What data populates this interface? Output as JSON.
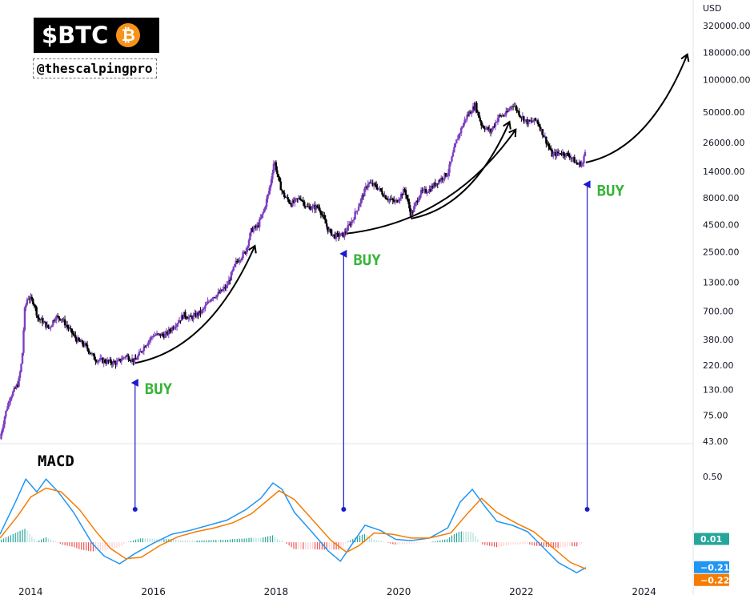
{
  "brand": {
    "ticker": "$BTC",
    "coin_symbol": "₿",
    "handle": "@thescalpingpro",
    "coin_color": "#f7931a"
  },
  "chart_data": [
    {
      "type": "candlestick",
      "title": "",
      "currency_label": "USD",
      "y_scale": "log",
      "ylim": [
        43,
        320000
      ],
      "y_tick_labels": [
        "320000.00",
        "180000.00",
        "100000.00",
        "50000.00",
        "26000.00",
        "14000.00",
        "8000.00",
        "4500.00",
        "2500.00",
        "1300.00",
        "700.00",
        "380.00",
        "220.00",
        "130.00",
        "75.00",
        "43.00"
      ],
      "y_tick_values": [
        320000,
        180000,
        100000,
        50000,
        26000,
        14000,
        8000,
        4500,
        2500,
        1300,
        700,
        380,
        220,
        130,
        75,
        43
      ],
      "x_tick_labels": [
        "2014",
        "2016",
        "2018",
        "2020",
        "2022",
        "2024"
      ],
      "x_tick_values": [
        2014,
        2016,
        2018,
        2020,
        2022,
        2024
      ],
      "xlim": [
        2013.5,
        2024.8
      ],
      "up_color": "#7e3fc0",
      "down_color": "#000000",
      "price_path": [
        {
          "t": 2013.5,
          "p": 45
        },
        {
          "t": 2013.58,
          "p": 75
        },
        {
          "t": 2013.66,
          "p": 110
        },
        {
          "t": 2013.74,
          "p": 130
        },
        {
          "t": 2013.8,
          "p": 150
        },
        {
          "t": 2013.86,
          "p": 250
        },
        {
          "t": 2013.9,
          "p": 700
        },
        {
          "t": 2013.95,
          "p": 950
        },
        {
          "t": 2014.05,
          "p": 850
        },
        {
          "t": 2014.12,
          "p": 600
        },
        {
          "t": 2014.2,
          "p": 560
        },
        {
          "t": 2014.3,
          "p": 480
        },
        {
          "t": 2014.4,
          "p": 620
        },
        {
          "t": 2014.5,
          "p": 600
        },
        {
          "t": 2014.6,
          "p": 500
        },
        {
          "t": 2014.75,
          "p": 380
        },
        {
          "t": 2014.9,
          "p": 330
        },
        {
          "t": 2015.05,
          "p": 250
        },
        {
          "t": 2015.2,
          "p": 240
        },
        {
          "t": 2015.4,
          "p": 230
        },
        {
          "t": 2015.55,
          "p": 270
        },
        {
          "t": 2015.7,
          "p": 240
        },
        {
          "t": 2015.85,
          "p": 330
        },
        {
          "t": 2016.0,
          "p": 420
        },
        {
          "t": 2016.2,
          "p": 420
        },
        {
          "t": 2016.4,
          "p": 560
        },
        {
          "t": 2016.5,
          "p": 650
        },
        {
          "t": 2016.6,
          "p": 600
        },
        {
          "t": 2016.8,
          "p": 700
        },
        {
          "t": 2016.95,
          "p": 950
        },
        {
          "t": 2017.05,
          "p": 1000
        },
        {
          "t": 2017.2,
          "p": 1200
        },
        {
          "t": 2017.35,
          "p": 2000
        },
        {
          "t": 2017.5,
          "p": 2500
        },
        {
          "t": 2017.6,
          "p": 4000
        },
        {
          "t": 2017.7,
          "p": 4300
        },
        {
          "t": 2017.8,
          "p": 6000
        },
        {
          "t": 2017.9,
          "p": 10000
        },
        {
          "t": 2017.97,
          "p": 18000
        },
        {
          "t": 2018.05,
          "p": 11000
        },
        {
          "t": 2018.12,
          "p": 8500
        },
        {
          "t": 2018.25,
          "p": 7000
        },
        {
          "t": 2018.4,
          "p": 8000
        },
        {
          "t": 2018.5,
          "p": 6500
        },
        {
          "t": 2018.7,
          "p": 6500
        },
        {
          "t": 2018.85,
          "p": 4000
        },
        {
          "t": 2018.95,
          "p": 3500
        },
        {
          "t": 2019.1,
          "p": 3600
        },
        {
          "t": 2019.25,
          "p": 5000
        },
        {
          "t": 2019.4,
          "p": 8000
        },
        {
          "t": 2019.5,
          "p": 11000
        },
        {
          "t": 2019.65,
          "p": 10000
        },
        {
          "t": 2019.8,
          "p": 8000
        },
        {
          "t": 2019.95,
          "p": 7200
        },
        {
          "t": 2020.1,
          "p": 9500
        },
        {
          "t": 2020.2,
          "p": 5500
        },
        {
          "t": 2020.35,
          "p": 8800
        },
        {
          "t": 2020.5,
          "p": 9500
        },
        {
          "t": 2020.65,
          "p": 11500
        },
        {
          "t": 2020.8,
          "p": 13500
        },
        {
          "t": 2020.95,
          "p": 28000
        },
        {
          "t": 2021.1,
          "p": 45000
        },
        {
          "t": 2021.25,
          "p": 58000
        },
        {
          "t": 2021.35,
          "p": 38000
        },
        {
          "t": 2021.5,
          "p": 33000
        },
        {
          "t": 2021.62,
          "p": 45000
        },
        {
          "t": 2021.75,
          "p": 48000
        },
        {
          "t": 2021.86,
          "p": 60000
        },
        {
          "t": 2021.98,
          "p": 47000
        },
        {
          "t": 2022.1,
          "p": 40000
        },
        {
          "t": 2022.25,
          "p": 42000
        },
        {
          "t": 2022.38,
          "p": 29000
        },
        {
          "t": 2022.5,
          "p": 20000
        },
        {
          "t": 2022.65,
          "p": 21000
        },
        {
          "t": 2022.8,
          "p": 19500
        },
        {
          "t": 2022.9,
          "p": 16500
        },
        {
          "t": 2023.0,
          "p": 16600
        },
        {
          "t": 2023.05,
          "p": 23000
        }
      ],
      "annotations": [
        {
          "label": "BUY",
          "t": 2015.65,
          "price": 220,
          "color": "#37b43a"
        },
        {
          "label": "BUY",
          "t": 2019.05,
          "price": 3500,
          "color": "#37b43a"
        },
        {
          "label": "BUY",
          "t": 2023.02,
          "price": 15500,
          "color": "#37b43a"
        }
      ],
      "projection_arrows": [
        {
          "from_t": 2015.7,
          "from_p": 230,
          "to_t": 2017.65,
          "to_p": 2800
        },
        {
          "from_t": 2019.15,
          "from_p": 3700,
          "to_t": 2021.9,
          "to_p": 34000
        },
        {
          "from_t": 2020.2,
          "from_p": 5100,
          "to_t": 2021.8,
          "to_p": 40000
        },
        {
          "from_t": 2023.05,
          "from_p": 17000,
          "to_t": 2024.7,
          "to_p": 170000
        }
      ]
    },
    {
      "type": "line",
      "title": "MACD",
      "title_color": "#e00000",
      "y_tick_labels": [
        "0.50"
      ],
      "y_tick_values": [
        0.5
      ],
      "ylim": [
        -0.33,
        0.75
      ],
      "series": [
        {
          "color": "#2196f3",
          "points": [
            {
              "t": 2013.5,
              "v": 0.05
            },
            {
              "t": 2013.75,
              "v": 0.3
            },
            {
              "t": 2013.92,
              "v": 0.48
            },
            {
              "t": 2014.1,
              "v": 0.38
            },
            {
              "t": 2014.25,
              "v": 0.48
            },
            {
              "t": 2014.45,
              "v": 0.38
            },
            {
              "t": 2014.7,
              "v": 0.22
            },
            {
              "t": 2015.0,
              "v": -0.02
            },
            {
              "t": 2015.2,
              "v": -0.12
            },
            {
              "t": 2015.45,
              "v": -0.18
            },
            {
              "t": 2015.7,
              "v": -0.1
            },
            {
              "t": 2016.0,
              "v": -0.02
            },
            {
              "t": 2016.3,
              "v": 0.05
            },
            {
              "t": 2016.6,
              "v": 0.08
            },
            {
              "t": 2016.9,
              "v": 0.12
            },
            {
              "t": 2017.2,
              "v": 0.16
            },
            {
              "t": 2017.5,
              "v": 0.24
            },
            {
              "t": 2017.75,
              "v": 0.33
            },
            {
              "t": 2017.95,
              "v": 0.45
            },
            {
              "t": 2018.1,
              "v": 0.4
            },
            {
              "t": 2018.3,
              "v": 0.22
            },
            {
              "t": 2018.6,
              "v": 0.06
            },
            {
              "t": 2018.85,
              "v": -0.08
            },
            {
              "t": 2019.05,
              "v": -0.16
            },
            {
              "t": 2019.25,
              "v": -0.02
            },
            {
              "t": 2019.45,
              "v": 0.12
            },
            {
              "t": 2019.7,
              "v": 0.08
            },
            {
              "t": 2019.95,
              "v": 0.01
            },
            {
              "t": 2020.2,
              "v": 0.0
            },
            {
              "t": 2020.5,
              "v": 0.02
            },
            {
              "t": 2020.8,
              "v": 0.1
            },
            {
              "t": 2021.0,
              "v": 0.3
            },
            {
              "t": 2021.2,
              "v": 0.4
            },
            {
              "t": 2021.4,
              "v": 0.27
            },
            {
              "t": 2021.6,
              "v": 0.15
            },
            {
              "t": 2021.85,
              "v": 0.12
            },
            {
              "t": 2022.1,
              "v": 0.07
            },
            {
              "t": 2022.35,
              "v": -0.05
            },
            {
              "t": 2022.6,
              "v": -0.17
            },
            {
              "t": 2022.9,
              "v": -0.25
            },
            {
              "t": 2023.05,
              "v": -0.21
            }
          ]
        },
        {
          "color": "#f57c00",
          "points": [
            {
              "t": 2013.5,
              "v": 0.02
            },
            {
              "t": 2013.8,
              "v": 0.2
            },
            {
              "t": 2014.0,
              "v": 0.34
            },
            {
              "t": 2014.25,
              "v": 0.41
            },
            {
              "t": 2014.5,
              "v": 0.38
            },
            {
              "t": 2014.8,
              "v": 0.24
            },
            {
              "t": 2015.05,
              "v": 0.08
            },
            {
              "t": 2015.3,
              "v": -0.06
            },
            {
              "t": 2015.55,
              "v": -0.14
            },
            {
              "t": 2015.8,
              "v": -0.13
            },
            {
              "t": 2016.1,
              "v": -0.04
            },
            {
              "t": 2016.4,
              "v": 0.03
            },
            {
              "t": 2016.7,
              "v": 0.07
            },
            {
              "t": 2017.0,
              "v": 0.1
            },
            {
              "t": 2017.3,
              "v": 0.14
            },
            {
              "t": 2017.6,
              "v": 0.21
            },
            {
              "t": 2017.85,
              "v": 0.31
            },
            {
              "t": 2018.05,
              "v": 0.39
            },
            {
              "t": 2018.3,
              "v": 0.32
            },
            {
              "t": 2018.6,
              "v": 0.16
            },
            {
              "t": 2018.9,
              "v": 0.0
            },
            {
              "t": 2019.15,
              "v": -0.09
            },
            {
              "t": 2019.35,
              "v": -0.04
            },
            {
              "t": 2019.6,
              "v": 0.06
            },
            {
              "t": 2019.9,
              "v": 0.05
            },
            {
              "t": 2020.2,
              "v": 0.02
            },
            {
              "t": 2020.5,
              "v": 0.02
            },
            {
              "t": 2020.85,
              "v": 0.06
            },
            {
              "t": 2021.1,
              "v": 0.2
            },
            {
              "t": 2021.35,
              "v": 0.33
            },
            {
              "t": 2021.6,
              "v": 0.22
            },
            {
              "t": 2021.9,
              "v": 0.14
            },
            {
              "t": 2022.2,
              "v": 0.07
            },
            {
              "t": 2022.5,
              "v": -0.05
            },
            {
              "t": 2022.8,
              "v": -0.17
            },
            {
              "t": 2023.05,
              "v": -0.22
            }
          ]
        }
      ],
      "histogram_colors": {
        "pos_strong": "#26a69a",
        "pos_weak": "#b2dfdb",
        "neg_strong": "#ef5350",
        "neg_weak": "#ffcdd2"
      },
      "badges": [
        {
          "label": "0.01",
          "value": 0.01,
          "color": "#26a69a"
        },
        {
          "label": "−0.21",
          "value": -0.21,
          "color": "#2196f3"
        },
        {
          "label": "−0.22",
          "value": -0.22,
          "color": "#f57c00"
        }
      ]
    }
  ]
}
